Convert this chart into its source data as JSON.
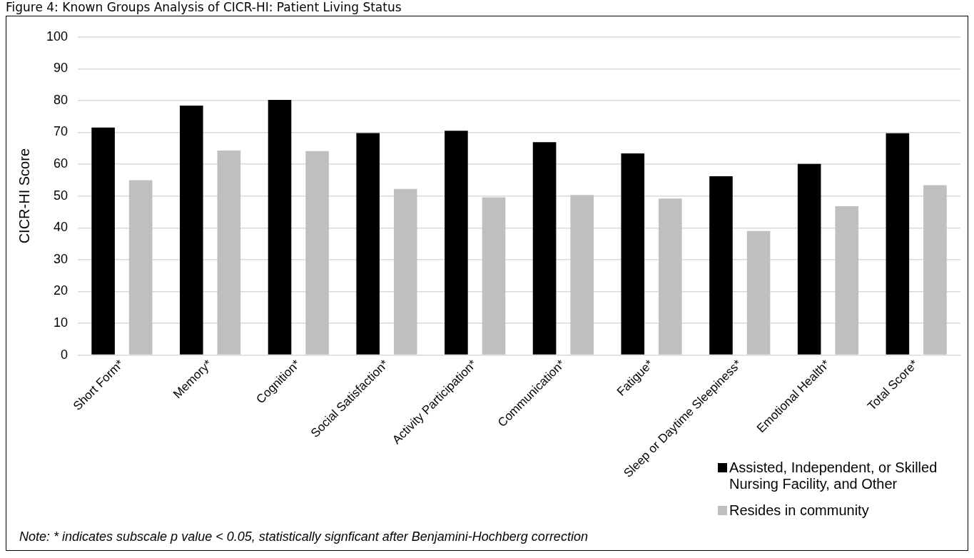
{
  "chart_data": {
    "type": "bar",
    "title": "Figure 4: Known Groups Analysis of CICR-HI: Patient Living Status",
    "ylabel": "CICR-HI Score",
    "categories": [
      "Short Form*",
      "Memory*",
      "Cognition*",
      "Social Satisfaction*",
      "Activity Participation*",
      "Communication*",
      "Fatigue*",
      "Sleep or Daytime Sleepiness*",
      "Emotional Health*",
      "Total Score*"
    ],
    "series": [
      {
        "name": "Assisted, Independent, or Skilled Nursing Facility, and Other",
        "color": "#000000",
        "values": [
          71.5,
          78.4,
          80.2,
          69.8,
          70.5,
          66.9,
          63.4,
          56.2,
          60.1,
          69.7
        ]
      },
      {
        "name": "Resides in community",
        "color": "#bfbfbf",
        "values": [
          55.0,
          64.3,
          64.1,
          52.2,
          49.6,
          50.3,
          49.2,
          39.0,
          46.8,
          53.4
        ]
      }
    ],
    "ylim": [
      0,
      100
    ],
    "yticks": [
      0,
      10,
      20,
      30,
      40,
      50,
      60,
      70,
      80,
      90,
      100
    ],
    "grid": "y",
    "legend": "bottom right",
    "annotations": [
      "Note: * indicates subscale p value < 0.05, statistically signficant after Benjamini-Hochberg correction"
    ]
  }
}
